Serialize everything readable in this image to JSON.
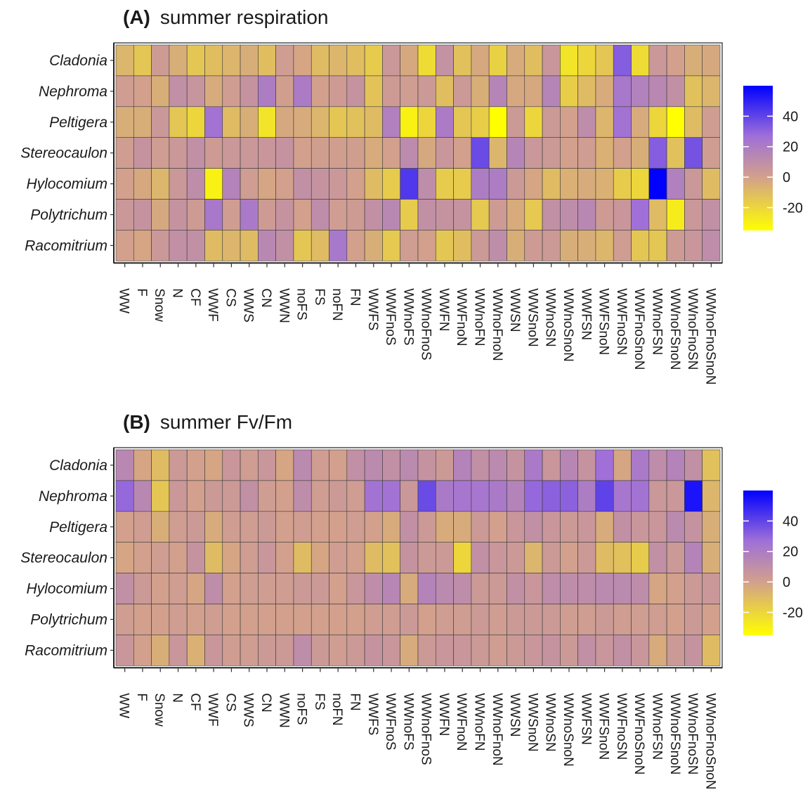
{
  "chart_data": [
    {
      "type": "heatmap",
      "panel_label": "(A)",
      "title": "summer respiration",
      "xlabel": "",
      "ylabel": "",
      "rows": [
        "Cladonia",
        "Nephroma",
        "Peltigera",
        "Stereocaulon",
        "Hylocomium",
        "Polytrichum",
        "Racomitrium"
      ],
      "columns": [
        "WW",
        "F",
        "Snow",
        "N",
        "CF",
        "WWF",
        "CS",
        "WWS",
        "CN",
        "WWN",
        "noFS",
        "FS",
        "noFN",
        "FN",
        "WWFS",
        "WWFnoS",
        "WWnoFS",
        "WWnoFnoS",
        "WWFN",
        "WWFnoN",
        "WWnoFN",
        "WWnoFnoN",
        "WWSN",
        "WWSnoN",
        "WWnoSN",
        "WWnoSnoN",
        "WWFSN",
        "WWFSnoN",
        "WWFnoSN",
        "WWFnoSnoN",
        "WWnoFSN",
        "WWnoFSnoN",
        "WWnoFnoSN",
        "WWnoFnoSnoN"
      ],
      "values": [
        [
          -8,
          -14,
          3,
          -5,
          -14,
          -11,
          -8,
          -5,
          -11,
          2,
          -2,
          -10,
          -8,
          -11,
          -16,
          5,
          -3,
          -22,
          9,
          -12,
          -3,
          -18,
          -4,
          -11,
          6,
          -25,
          -20,
          -14,
          35,
          -22,
          5,
          0,
          -5,
          -3
        ],
        [
          2,
          0,
          -5,
          10,
          7,
          -4,
          2,
          8,
          22,
          1,
          23,
          0,
          3,
          8,
          -13,
          3,
          2,
          4,
          -11,
          4,
          -5,
          17,
          -3,
          -3,
          17,
          -17,
          -10,
          -4,
          25,
          19,
          15,
          10,
          -12,
          -8
        ],
        [
          -5,
          -5,
          5,
          -14,
          -20,
          28,
          -10,
          -5,
          -25,
          -3,
          -4,
          -8,
          -14,
          -12,
          -10,
          20,
          -30,
          -20,
          23,
          -14,
          -17,
          -36,
          4,
          -20,
          4,
          0,
          12,
          -8,
          28,
          -4,
          -20,
          -36,
          -10,
          2
        ],
        [
          2,
          8,
          2,
          5,
          10,
          3,
          5,
          5,
          6,
          8,
          0,
          1,
          1,
          1,
          -4,
          0,
          13,
          -3,
          6,
          0,
          40,
          -8,
          17,
          5,
          4,
          0,
          2,
          -6,
          0,
          -5,
          35,
          -12,
          38,
          2
        ],
        [
          0,
          -3,
          -8,
          5,
          12,
          -30,
          18,
          2,
          -2,
          0,
          10,
          8,
          5,
          0,
          -10,
          -16,
          45,
          12,
          -16,
          -16,
          22,
          22,
          4,
          -2,
          -10,
          -6,
          -4,
          -6,
          -16,
          -20,
          60,
          20,
          5,
          -10
        ],
        [
          5,
          8,
          -3,
          8,
          3,
          25,
          2,
          24,
          3,
          8,
          0,
          12,
          2,
          3,
          10,
          15,
          -16,
          10,
          8,
          8,
          -15,
          3,
          -4,
          -15,
          10,
          12,
          15,
          3,
          6,
          30,
          -10,
          -28,
          5,
          10
        ],
        [
          0,
          -2,
          5,
          10,
          10,
          -10,
          -8,
          -10,
          15,
          10,
          -14,
          -10,
          25,
          0,
          -5,
          -15,
          2,
          0,
          -14,
          -11,
          4,
          12,
          -5,
          3,
          4,
          -5,
          -5,
          -8,
          2,
          -14,
          -14,
          3,
          6,
          12
        ]
      ],
      "color_scale": {
        "min": -35,
        "max": 60,
        "low_color": "#ffff00",
        "mid_color": "#d2a08c",
        "high_color": "#0000ff"
      },
      "legend": {
        "ticks": [
          40,
          20,
          0,
          -20
        ],
        "tick_labels": [
          "40",
          "20",
          "0",
          "-20"
        ],
        "placement": "right"
      }
    },
    {
      "type": "heatmap",
      "panel_label": "(B)",
      "title": "summer Fv/Fm",
      "xlabel": "",
      "ylabel": "",
      "rows": [
        "Cladonia",
        "Nephroma",
        "Peltigera",
        "Stereocaulon",
        "Hylocomium",
        "Polytrichum",
        "Racomitrium"
      ],
      "columns": [
        "WW",
        "F",
        "Snow",
        "N",
        "CF",
        "WWF",
        "CS",
        "WWS",
        "CN",
        "WWN",
        "noFS",
        "FS",
        "noFN",
        "FN",
        "WWFS",
        "WWFnoS",
        "WWnoFS",
        "WWnoFnoS",
        "WWFN",
        "WWFnoN",
        "WWnoFN",
        "WWnoFnoN",
        "WWSN",
        "WWSnoN",
        "WWnoSN",
        "WWnoSnoN",
        "WWFSN",
        "WWFSnoN",
        "WWFnoSN",
        "WWFnoSnoN",
        "WWnoFSN",
        "WWnoFSnoN",
        "WWnoFnoSN",
        "WWnoFnoSnoN"
      ],
      "values": [
        [
          15,
          -2,
          -10,
          4,
          0,
          -2,
          6,
          2,
          6,
          -2,
          14,
          2,
          0,
          10,
          14,
          10,
          14,
          8,
          4,
          18,
          10,
          14,
          8,
          24,
          6,
          16,
          8,
          30,
          -2,
          24,
          12,
          18,
          10,
          -12
        ],
        [
          32,
          15,
          -14,
          5,
          0,
          4,
          4,
          10,
          2,
          0,
          12,
          2,
          4,
          2,
          28,
          28,
          5,
          40,
          24,
          26,
          26,
          24,
          18,
          32,
          34,
          34,
          22,
          42,
          26,
          28,
          5,
          5,
          55,
          -8
        ],
        [
          0,
          2,
          -5,
          2,
          4,
          -4,
          2,
          2,
          4,
          0,
          2,
          0,
          0,
          2,
          0,
          -4,
          10,
          4,
          -4,
          -4,
          4,
          0,
          6,
          10,
          6,
          4,
          6,
          -4,
          10,
          6,
          6,
          14,
          8,
          -5
        ],
        [
          -2,
          0,
          2,
          0,
          8,
          -10,
          -2,
          2,
          6,
          0,
          -10,
          -2,
          2,
          0,
          -10,
          -12,
          8,
          4,
          4,
          -20,
          10,
          6,
          4,
          -8,
          4,
          0,
          4,
          -10,
          -12,
          -16,
          10,
          4,
          18,
          -5
        ],
        [
          10,
          4,
          0,
          2,
          -2,
          12,
          0,
          2,
          2,
          2,
          4,
          4,
          0,
          6,
          12,
          16,
          -4,
          18,
          14,
          12,
          4,
          4,
          10,
          6,
          12,
          12,
          12,
          14,
          14,
          12,
          -2,
          0,
          4,
          5
        ],
        [
          2,
          0,
          0,
          2,
          0,
          2,
          0,
          0,
          0,
          0,
          0,
          0,
          0,
          0,
          2,
          2,
          4,
          0,
          2,
          2,
          4,
          2,
          4,
          4,
          4,
          2,
          2,
          4,
          2,
          2,
          2,
          0,
          4,
          0
        ],
        [
          6,
          0,
          -5,
          6,
          -6,
          6,
          2,
          2,
          4,
          4,
          12,
          4,
          2,
          4,
          8,
          6,
          -4,
          4,
          6,
          6,
          4,
          2,
          4,
          6,
          8,
          4,
          10,
          6,
          10,
          6,
          -4,
          4,
          8,
          -10
        ]
      ],
      "color_scale": {
        "min": -35,
        "max": 60,
        "low_color": "#ffff00",
        "mid_color": "#d2a08c",
        "high_color": "#0000ff"
      },
      "legend": {
        "ticks": [
          40,
          20,
          0,
          -20
        ],
        "tick_labels": [
          "40",
          "20",
          "0",
          "-20"
        ],
        "placement": "right"
      }
    }
  ]
}
